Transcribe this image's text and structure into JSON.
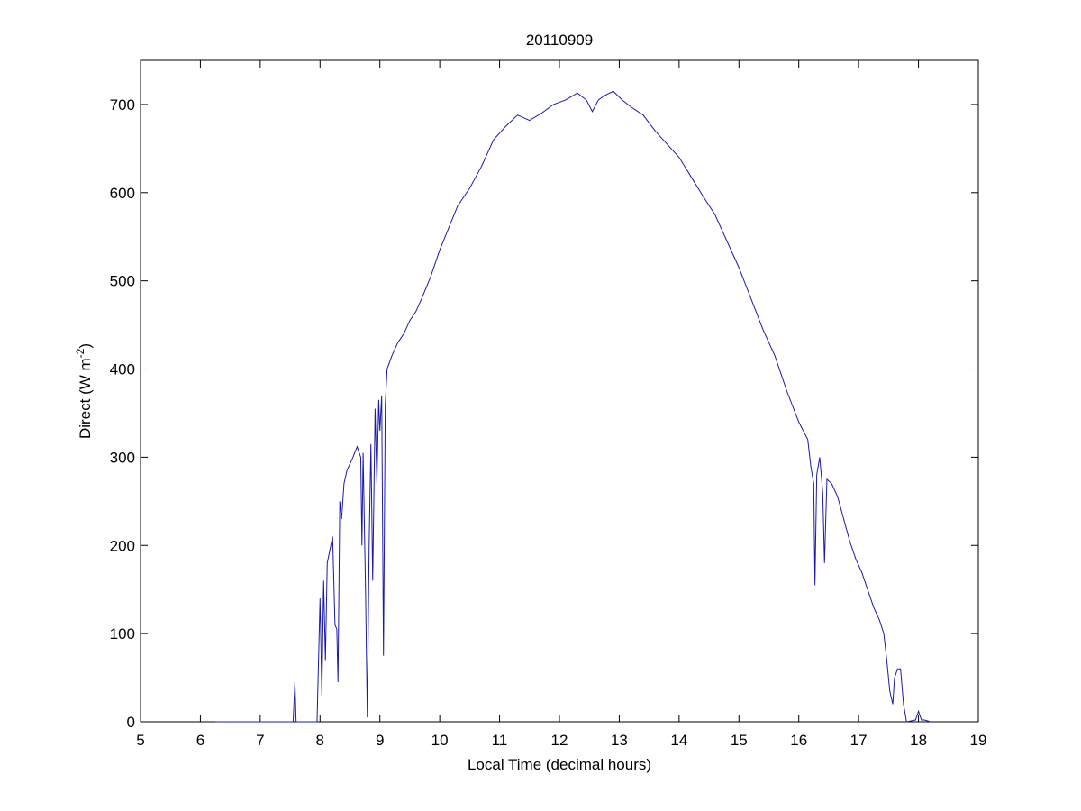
{
  "chart_data": {
    "type": "line",
    "title": "20110909",
    "xlabel": "Local Time (decimal hours)",
    "ylabel": [
      "Direct (W m",
      "-2",
      ")"
    ],
    "x": [
      6.25,
      7.55,
      7.58,
      7.6,
      7.95,
      8.0,
      8.03,
      8.06,
      8.09,
      8.12,
      8.18,
      8.21,
      8.25,
      8.28,
      8.3,
      8.33,
      8.36,
      8.4,
      8.45,
      8.55,
      8.62,
      8.68,
      8.7,
      8.72,
      8.76,
      8.79,
      8.82,
      8.85,
      8.88,
      8.92,
      8.95,
      8.98,
      9.0,
      9.03,
      9.06,
      9.09,
      9.12,
      9.2,
      9.3,
      9.4,
      9.5,
      9.6,
      9.7,
      9.85,
      10.0,
      10.15,
      10.3,
      10.5,
      10.7,
      10.9,
      11.1,
      11.3,
      11.5,
      11.7,
      11.9,
      12.1,
      12.3,
      12.45,
      12.55,
      12.65,
      12.75,
      12.9,
      13.05,
      13.2,
      13.4,
      13.6,
      13.8,
      14.0,
      14.2,
      14.4,
      14.6,
      14.8,
      15.0,
      15.2,
      15.4,
      15.6,
      15.8,
      16.0,
      16.15,
      16.2,
      16.25,
      16.27,
      16.3,
      16.35,
      16.4,
      16.43,
      16.47,
      16.55,
      16.65,
      16.75,
      16.85,
      16.95,
      17.05,
      17.15,
      17.25,
      17.35,
      17.42,
      17.47,
      17.52,
      17.57,
      17.6,
      17.65,
      17.7,
      17.75,
      17.8,
      17.95,
      18.0,
      18.05,
      18.1,
      18.2
    ],
    "series": [
      {
        "color": "#1a1aa6",
        "values": [
          0,
          0,
          45,
          0,
          0,
          140,
          30,
          160,
          70,
          180,
          200,
          210,
          110,
          105,
          45,
          250,
          230,
          270,
          285,
          300,
          312,
          300,
          200,
          305,
          150,
          5,
          200,
          315,
          160,
          355,
          270,
          365,
          330,
          370,
          75,
          360,
          400,
          415,
          430,
          440,
          455,
          465,
          480,
          505,
          535,
          560,
          585,
          605,
          630,
          660,
          675,
          688,
          682,
          690,
          700,
          705,
          713,
          705,
          692,
          705,
          710,
          715,
          705,
          697,
          688,
          670,
          655,
          640,
          618,
          596,
          575,
          545,
          515,
          480,
          445,
          415,
          375,
          340,
          320,
          290,
          270,
          155,
          280,
          300,
          260,
          180,
          275,
          270,
          255,
          230,
          205,
          185,
          170,
          150,
          130,
          115,
          100,
          70,
          35,
          20,
          50,
          60,
          60,
          20,
          0,
          2,
          12,
          2,
          2,
          0
        ]
      }
    ],
    "xlim": [
      5,
      19
    ],
    "xticks": [
      5,
      6,
      7,
      8,
      9,
      10,
      11,
      12,
      13,
      14,
      15,
      16,
      17,
      18,
      19
    ],
    "ylim": [
      0,
      750
    ],
    "yticks": [
      0,
      100,
      200,
      300,
      400,
      500,
      600,
      700
    ]
  }
}
